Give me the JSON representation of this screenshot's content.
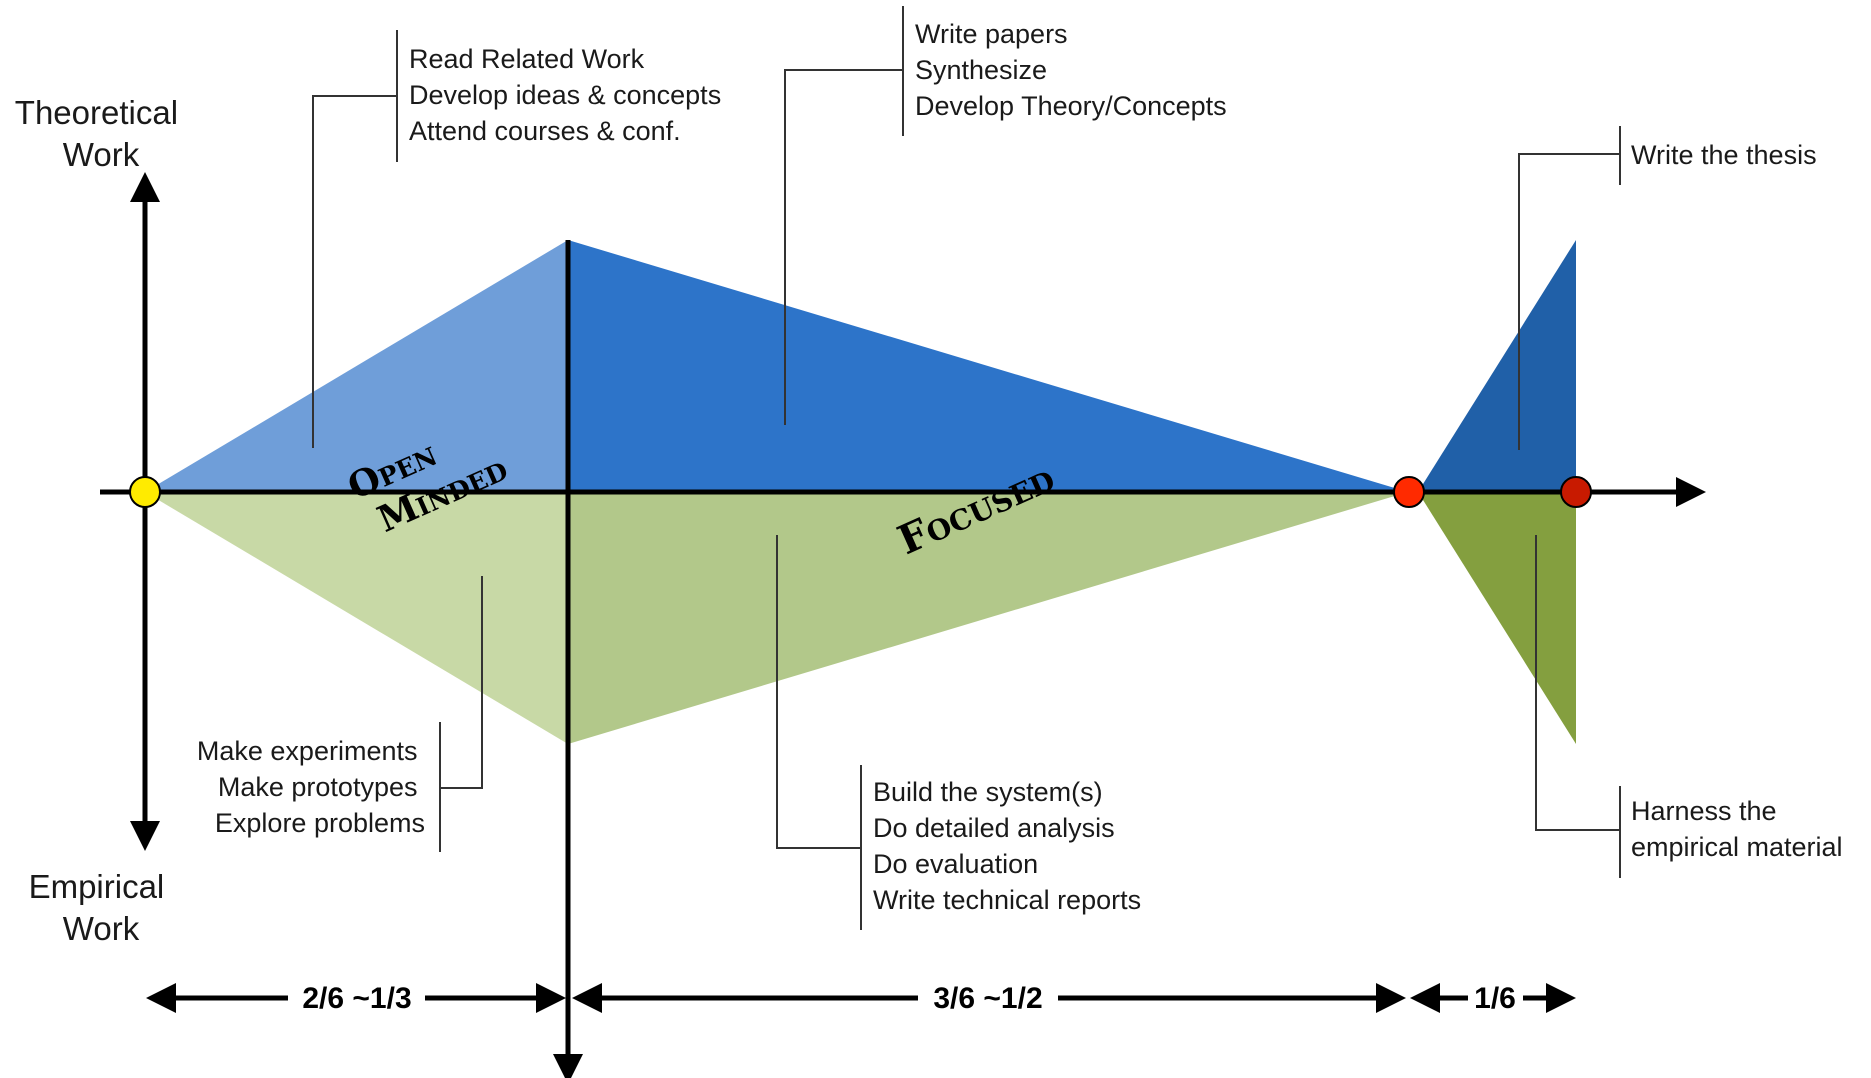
{
  "axis": {
    "top_label": [
      "Theoretical",
      "Work"
    ],
    "bottom_label": [
      "Empirical",
      "Work"
    ]
  },
  "phases": {
    "open_minded": [
      "Open",
      "Minded"
    ],
    "focused": "Focused"
  },
  "callouts": {
    "open_theoretical": [
      "Read Related Work",
      "Develop ideas & concepts",
      "Attend courses & conf."
    ],
    "open_empirical": [
      "Make experiments",
      "Make prototypes",
      "Explore problems"
    ],
    "focused_theoretical": [
      "Write papers",
      "Synthesize",
      "Develop Theory/Concepts"
    ],
    "focused_empirical": [
      "Build the system(s)",
      "Do detailed analysis",
      "Do evaluation",
      "Write technical reports"
    ],
    "final_theoretical": [
      "Write the thesis"
    ],
    "final_empirical": [
      "Harness the",
      "empirical material"
    ]
  },
  "durations": [
    "2/6 ~1/3",
    "3/6 ~1/2",
    "1/6"
  ],
  "colors": {
    "open_theoretical": "#6f9ed9",
    "focused_theoretical": "#2d74c9",
    "final_theoretical": "#2060a8",
    "open_empirical": "#c8d9a6",
    "focused_empirical": "#b2c88a",
    "final_empirical": "#849f3f",
    "start_dot": "#ffeb00",
    "milestone_dot": "#ff2a00",
    "end_dot": "#c81a00"
  }
}
